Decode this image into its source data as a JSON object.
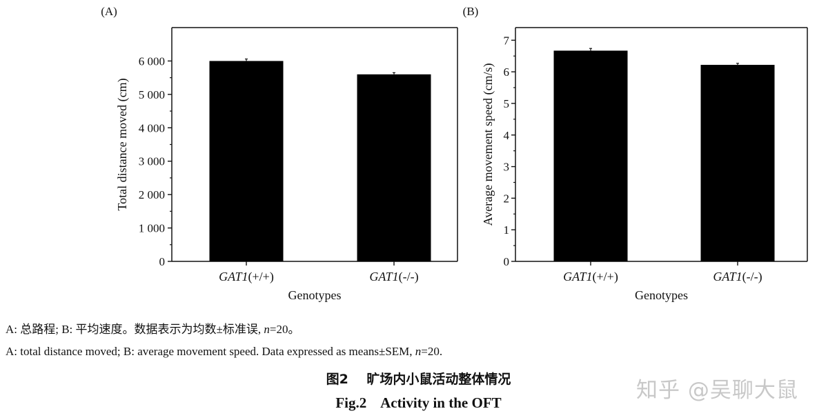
{
  "chart_data": [
    {
      "type": "bar",
      "panel_label": "(A)",
      "categories": [
        "GAT1(+/+)",
        "GAT1(-/-)"
      ],
      "category_italic_part": "GAT1",
      "category_suffixes": [
        "(+/+)",
        "(-/-)"
      ],
      "values": [
        6000,
        5600
      ],
      "error_sem": [
        60,
        50
      ],
      "xlabel": "Genotypes",
      "ylabel": "Total distance moved (cm)",
      "ylim": [
        0,
        7000
      ],
      "yticks": [
        0,
        1000,
        2000,
        3000,
        4000,
        5000,
        6000
      ],
      "ytick_labels": [
        "0",
        "1 000",
        "2 000",
        "3 000",
        "4 000",
        "5 000",
        "6 000"
      ],
      "bar_color": "#000000",
      "grid": false
    },
    {
      "type": "bar",
      "panel_label": "(B)",
      "categories": [
        "GAT1(+/+)",
        "GAT1(-/-)"
      ],
      "category_italic_part": "GAT1",
      "category_suffixes": [
        "(+/+)",
        "(-/-)"
      ],
      "values": [
        6.67,
        6.22
      ],
      "error_sem": [
        0.07,
        0.05
      ],
      "xlabel": "Genotypes",
      "ylabel": "Average movement speed (cm/s)",
      "ylim": [
        0,
        7.4
      ],
      "yticks": [
        0,
        1,
        2,
        3,
        4,
        5,
        6,
        7
      ],
      "ytick_labels": [
        "0",
        "1",
        "2",
        "3",
        "4",
        "5",
        "6",
        "7"
      ],
      "bar_color": "#000000",
      "grid": false
    }
  ],
  "caption": {
    "cn_line": "A: 总路程; B: 平均速度。数据表示为均数±标准误, ",
    "cn_n": "n",
    "cn_tail": "=20。",
    "en_line": "A: total distance moved; B: average movement speed. Data expressed as means±SEM, ",
    "en_n": "n",
    "en_tail": "=20."
  },
  "figure_title_cn": "图2    旷场内小鼠活动整体情况",
  "figure_title_en": "Fig.2    Activity in the OFT",
  "watermark": "知乎 @吴聊大鼠"
}
